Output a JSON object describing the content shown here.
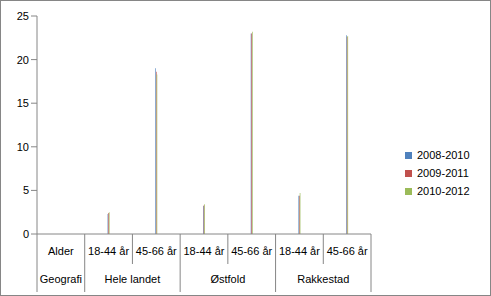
{
  "chart_data": {
    "type": "bar",
    "categories": [
      "Alder",
      "18-44 år",
      "45-66 år",
      "18-44 år",
      "45-66 år",
      "18-44 år",
      "45-66 år"
    ],
    "groups": [
      {
        "label": "Geografi",
        "span": 1
      },
      {
        "label": "Hele landet",
        "span": 2
      },
      {
        "label": "Østfold",
        "span": 2
      },
      {
        "label": "Rakkestad",
        "span": 2
      }
    ],
    "series": [
      {
        "name": "2008-2010",
        "color": "#4f81bd",
        "values": [
          null,
          2.3,
          19.0,
          3.2,
          23.0,
          4.4,
          22.8
        ]
      },
      {
        "name": "2009-2011",
        "color": "#c0504d",
        "values": [
          null,
          2.4,
          18.6,
          3.3,
          23.0,
          4.4,
          22.6
        ]
      },
      {
        "name": "2010-2012",
        "color": "#9bbb59",
        "values": [
          null,
          2.5,
          18.3,
          3.4,
          23.2,
          4.7,
          22.7
        ]
      }
    ],
    "ylim": [
      0,
      25
    ],
    "yticks": [
      0,
      5,
      10,
      15,
      20,
      25
    ],
    "grid": false,
    "legend": "right"
  }
}
